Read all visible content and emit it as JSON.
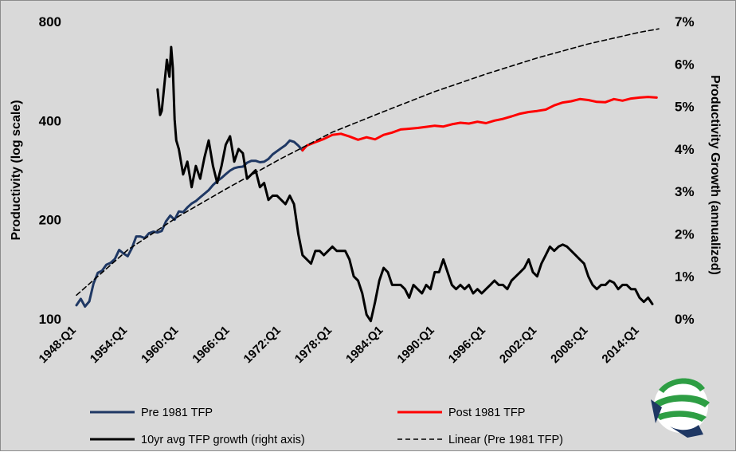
{
  "chart_data": {
    "type": "line",
    "title": "",
    "ylabel_left": "Productivity (log scale)",
    "ylabel_right": "Productivity Growth (annualized)",
    "left_axis": {
      "scale": "log",
      "range": [
        100,
        800
      ],
      "ticks": [
        100,
        200,
        400,
        800
      ],
      "tick_labels": [
        "100",
        "200",
        "400",
        "800"
      ]
    },
    "right_axis": {
      "scale": "linear",
      "range": [
        0,
        7
      ],
      "ticks": [
        0,
        1,
        2,
        3,
        4,
        5,
        6,
        7
      ],
      "tick_labels": [
        "0%",
        "1%",
        "2%",
        "3%",
        "4%",
        "5%",
        "6%",
        "7%"
      ]
    },
    "x_range": [
      1948,
      2016.25
    ],
    "x_tick_labels": [
      "1948:Q1",
      "1954:Q1",
      "1960:Q1",
      "1966:Q1",
      "1972:Q1",
      "1978:Q1",
      "1984:Q1",
      "1990:Q1",
      "1996:Q1",
      "2002:Q1",
      "2008:Q1",
      "2014:Q1"
    ],
    "x_tick_values": [
      1948,
      1954,
      1960,
      1966,
      1972,
      1978,
      1984,
      1990,
      1996,
      2002,
      2008,
      2014
    ],
    "grid": false,
    "legend_position": "bottom",
    "series": [
      {
        "name": "Pre 1981 TFP",
        "axis": "left",
        "color": "#1f3864",
        "style": "solid",
        "x": [
          1948.0,
          1948.5,
          1949.0,
          1949.5,
          1950.0,
          1950.5,
          1951.0,
          1951.5,
          1952.0,
          1952.5,
          1953.0,
          1953.5,
          1954.0,
          1954.5,
          1955.0,
          1955.5,
          1956.0,
          1956.5,
          1957.0,
          1957.5,
          1958.0,
          1958.5,
          1959.0,
          1959.5,
          1960.0,
          1960.5,
          1961.0,
          1961.5,
          1962.0,
          1962.5,
          1963.0,
          1963.5,
          1964.0,
          1964.5,
          1965.0,
          1965.5,
          1966.0,
          1966.5,
          1967.0,
          1967.5,
          1968.0,
          1968.5,
          1969.0,
          1969.5,
          1970.0,
          1970.5,
          1971.0,
          1971.5,
          1972.0,
          1972.5,
          1973.0,
          1973.5,
          1974.0,
          1974.5
        ],
        "values": [
          110,
          115,
          109,
          113,
          128,
          138,
          140,
          146,
          148,
          152,
          162,
          158,
          155,
          164,
          178,
          178,
          176,
          182,
          184,
          183,
          185,
          198,
          206,
          200,
          212,
          211,
          218,
          224,
          228,
          234,
          240,
          246,
          255,
          262,
          268,
          275,
          282,
          287,
          289,
          290,
          298,
          302,
          302,
          299,
          300,
          306,
          316,
          323,
          330,
          337,
          348,
          345,
          336,
          325
        ]
      },
      {
        "name": "Post 1981 TFP",
        "axis": "left",
        "color": "#ff0000",
        "style": "solid",
        "x": [
          1974.5,
          1975.0,
          1976.0,
          1977.0,
          1978.0,
          1979.0,
          1980.0,
          1981.0,
          1982.0,
          1983.0,
          1984.0,
          1985.0,
          1986.0,
          1987.0,
          1988.0,
          1989.0,
          1990.0,
          1991.0,
          1992.0,
          1993.0,
          1994.0,
          1995.0,
          1996.0,
          1997.0,
          1998.0,
          1999.0,
          2000.0,
          2001.0,
          2002.0,
          2003.0,
          2004.0,
          2005.0,
          2006.0,
          2007.0,
          2008.0,
          2009.0,
          2010.0,
          2011.0,
          2012.0,
          2013.0,
          2014.0,
          2015.0,
          2016.0
        ],
        "values": [
          325,
          336,
          344,
          352,
          362,
          365,
          358,
          350,
          356,
          351,
          362,
          368,
          376,
          378,
          380,
          383,
          386,
          384,
          390,
          394,
          392,
          397,
          393,
          400,
          405,
          412,
          420,
          425,
          428,
          432,
          445,
          454,
          458,
          465,
          462,
          456,
          455,
          465,
          460,
          467,
          470,
          472,
          470
        ]
      },
      {
        "name": "10yr avg TFP growth (right axis)",
        "axis": "right",
        "color": "#000000",
        "style": "solid",
        "x": [
          1957.5,
          1957.8,
          1958.0,
          1958.3,
          1958.6,
          1958.9,
          1959.1,
          1959.3,
          1959.5,
          1959.7,
          1960.0,
          1960.5,
          1961.0,
          1961.5,
          1962.0,
          1962.5,
          1963.0,
          1963.5,
          1964.0,
          1964.5,
          1965.0,
          1965.5,
          1966.0,
          1966.5,
          1967.0,
          1967.5,
          1968.0,
          1968.5,
          1969.0,
          1969.5,
          1970.0,
          1970.5,
          1971.0,
          1971.5,
          1972.0,
          1972.5,
          1973.0,
          1973.5,
          1974.0,
          1974.5,
          1975.0,
          1975.5,
          1976.0,
          1976.5,
          1977.0,
          1977.5,
          1978.0,
          1978.5,
          1979.0,
          1979.5,
          1980.0,
          1980.5,
          1981.0,
          1981.5,
          1982.0,
          1982.5,
          1983.0,
          1983.5,
          1984.0,
          1984.5,
          1985.0,
          1985.5,
          1986.0,
          1986.5,
          1987.0,
          1987.5,
          1988.0,
          1988.5,
          1989.0,
          1989.5,
          1990.0,
          1990.5,
          1991.0,
          1991.5,
          1992.0,
          1992.5,
          1993.0,
          1993.5,
          1994.0,
          1994.5,
          1995.0,
          1995.5,
          1996.0,
          1996.5,
          1997.0,
          1997.5,
          1998.0,
          1998.5,
          1999.0,
          1999.5,
          2000.0,
          2000.5,
          2001.0,
          2001.5,
          2002.0,
          2002.5,
          2003.0,
          2003.5,
          2004.0,
          2004.5,
          2005.0,
          2005.5,
          2006.0,
          2006.5,
          2007.0,
          2007.5,
          2008.0,
          2008.5,
          2009.0,
          2009.5,
          2010.0,
          2010.5,
          2011.0,
          2011.5,
          2012.0,
          2012.5,
          2013.0,
          2013.5,
          2014.0,
          2014.5,
          2015.0,
          2015.5
        ],
        "values": [
          5.4,
          4.8,
          4.9,
          5.5,
          6.1,
          5.7,
          6.4,
          5.9,
          4.7,
          4.2,
          4.0,
          3.4,
          3.7,
          3.1,
          3.6,
          3.3,
          3.8,
          4.2,
          3.6,
          3.2,
          3.6,
          4.1,
          4.3,
          3.7,
          4.0,
          3.9,
          3.3,
          3.4,
          3.5,
          3.1,
          3.2,
          2.8,
          2.9,
          2.9,
          2.8,
          2.7,
          2.9,
          2.7,
          2.0,
          1.5,
          1.4,
          1.3,
          1.6,
          1.6,
          1.5,
          1.6,
          1.7,
          1.6,
          1.6,
          1.6,
          1.4,
          1.0,
          0.9,
          0.6,
          0.1,
          -0.05,
          0.4,
          0.9,
          1.2,
          1.1,
          0.8,
          0.8,
          0.8,
          0.7,
          0.5,
          0.8,
          0.7,
          0.6,
          0.8,
          0.7,
          1.1,
          1.1,
          1.4,
          1.1,
          0.8,
          0.7,
          0.8,
          0.7,
          0.8,
          0.6,
          0.7,
          0.6,
          0.7,
          0.8,
          0.9,
          0.8,
          0.8,
          0.7,
          0.9,
          1.0,
          1.1,
          1.2,
          1.4,
          1.1,
          1.0,
          1.3,
          1.5,
          1.7,
          1.6,
          1.7,
          1.75,
          1.7,
          1.6,
          1.5,
          1.4,
          1.3,
          1.0,
          0.8,
          0.7,
          0.8,
          0.8,
          0.9,
          0.85,
          0.7,
          0.8,
          0.8,
          0.7,
          0.7,
          0.5,
          0.4,
          0.5,
          0.35
        ]
      },
      {
        "name": "Linear (Pre 1981 TFP)",
        "axis": "left",
        "color": "#000000",
        "style": "dashed",
        "x": [
          1948,
          1954,
          1960,
          1966,
          1972,
          1978,
          1984,
          1990,
          1996,
          2002,
          2008,
          2014,
          2016.25
        ],
        "values": [
          118,
          162,
          205,
          252,
          307,
          369,
          426,
          490,
          554,
          620,
          684,
          742,
          760
        ]
      }
    ],
    "legend": [
      {
        "label": "Pre 1981 TFP",
        "color": "#1f3864",
        "style": "solid"
      },
      {
        "label": "Post 1981 TFP",
        "color": "#ff0000",
        "style": "solid"
      },
      {
        "label": "10yr avg TFP growth (right axis)",
        "color": "#000000",
        "style": "solid"
      },
      {
        "label": "Linear (Pre 1981 TFP)",
        "color": "#000000",
        "style": "dashed"
      }
    ]
  },
  "logo": {
    "name": "globe-arrow-logo-icon",
    "colors": [
      "#2e9e44",
      "#1f3864"
    ]
  }
}
